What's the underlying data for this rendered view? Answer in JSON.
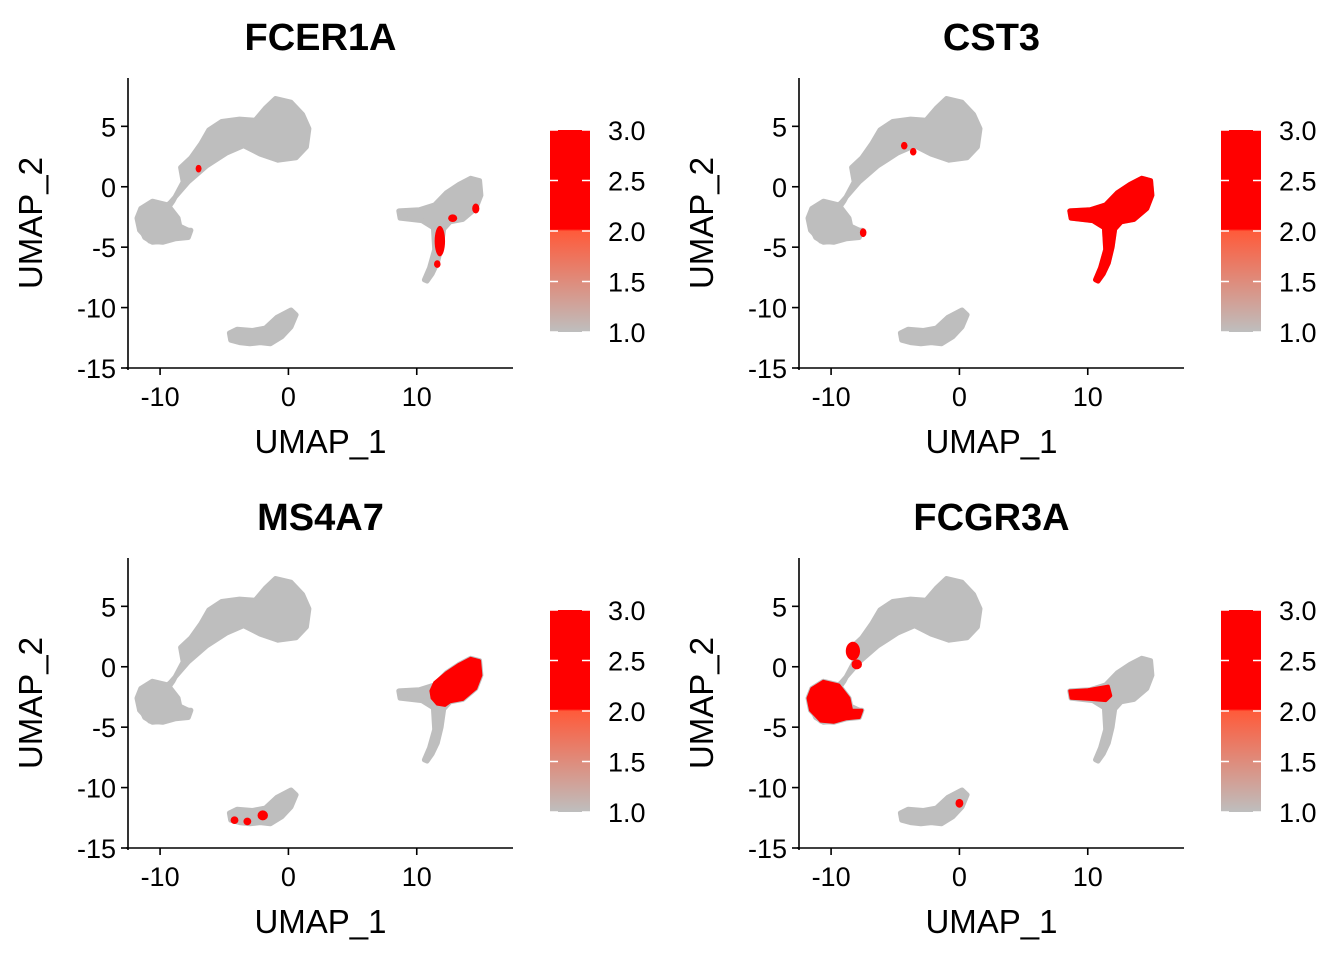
{
  "figure_name": "feature-plot-grid",
  "colors": {
    "low": "#bebebe",
    "high": "#ff0000",
    "axis": "#000000",
    "background": "#ffffff"
  },
  "chart_data": [
    {
      "type": "scatter",
      "title": "FCER1A",
      "xlabel": "UMAP_1",
      "ylabel": "UMAP_2",
      "xlim": [
        -12.5,
        17.5
      ],
      "ylim": [
        -15,
        9
      ],
      "xticks": [
        -10,
        0,
        10
      ],
      "yticks": [
        5,
        0,
        -5,
        -10,
        -15
      ],
      "legend": {
        "position": "right",
        "ticks": [
          3.0,
          2.5,
          2.0,
          1.5,
          1.0
        ],
        "range": [
          1.0,
          3.0
        ]
      },
      "highlight": [
        {
          "cluster": "monocyte",
          "shape": "spot",
          "x": 11.8,
          "y": -4.5,
          "w": 0.5,
          "h": 2.2
        },
        {
          "cluster": "monocyte",
          "shape": "spot",
          "x": 12.8,
          "y": -2.6,
          "w": 0.4,
          "h": 0.3
        },
        {
          "cluster": "monocyte",
          "shape": "spot",
          "x": 14.6,
          "y": -1.8,
          "w": 0.25,
          "h": 0.5
        },
        {
          "cluster": "monocyte",
          "shape": "spot",
          "x": 11.6,
          "y": -6.4,
          "w": 0.2,
          "h": 0.3
        },
        {
          "cluster": "tcell",
          "shape": "spot",
          "x": -7.0,
          "y": 1.5,
          "w": 0.15,
          "h": 0.3
        }
      ]
    },
    {
      "type": "scatter",
      "title": "CST3",
      "xlabel": "UMAP_1",
      "ylabel": "UMAP_2",
      "xlim": [
        -12.5,
        17.5
      ],
      "ylim": [
        -15,
        9
      ],
      "xticks": [
        -10,
        0,
        10
      ],
      "yticks": [
        5,
        0,
        -5,
        -10,
        -15
      ],
      "legend": {
        "position": "right",
        "ticks": [
          3.0,
          2.5,
          2.0,
          1.5,
          1.0
        ],
        "range": [
          1.0,
          3.0
        ]
      },
      "highlight": [
        {
          "cluster": "monocyte",
          "shape": "full"
        },
        {
          "cluster": "tcell",
          "shape": "spot",
          "x": -4.3,
          "y": 3.4,
          "w": 0.2,
          "h": 0.3
        },
        {
          "cluster": "tcell",
          "shape": "spot",
          "x": -3.6,
          "y": 2.9,
          "w": 0.2,
          "h": 0.3
        },
        {
          "cluster": "nk",
          "shape": "spot",
          "x": -7.5,
          "y": -3.8,
          "w": 0.2,
          "h": 0.4
        }
      ]
    },
    {
      "type": "scatter",
      "title": "MS4A7",
      "xlabel": "UMAP_1",
      "ylabel": "UMAP_2",
      "xlim": [
        -12.5,
        17.5
      ],
      "ylim": [
        -15,
        9
      ],
      "xticks": [
        -10,
        0,
        10
      ],
      "yticks": [
        5,
        0,
        -5,
        -10,
        -15
      ],
      "legend": {
        "position": "right",
        "ticks": [
          3.0,
          2.5,
          2.0,
          1.5,
          1.0
        ],
        "range": [
          1.0,
          3.0
        ]
      },
      "highlight": [
        {
          "cluster": "monocyte",
          "shape": "body"
        },
        {
          "cluster": "bcell",
          "shape": "spot",
          "x": -2.0,
          "y": -12.3,
          "w": 0.5,
          "h": 0.5
        },
        {
          "cluster": "bcell",
          "shape": "spot",
          "x": -4.2,
          "y": -12.7,
          "w": 0.3,
          "h": 0.3
        },
        {
          "cluster": "bcell",
          "shape": "spot",
          "x": -3.2,
          "y": -12.8,
          "w": 0.3,
          "h": 0.3
        }
      ]
    },
    {
      "type": "scatter",
      "title": "FCGR3A",
      "xlabel": "UMAP_1",
      "ylabel": "UMAP_2",
      "xlim": [
        -12.5,
        17.5
      ],
      "ylim": [
        -15,
        9
      ],
      "xticks": [
        -10,
        0,
        10
      ],
      "yticks": [
        5,
        0,
        -5,
        -10,
        -15
      ],
      "legend": {
        "position": "right",
        "ticks": [
          3.0,
          2.5,
          2.0,
          1.5,
          1.0
        ],
        "range": [
          1.0,
          3.0
        ]
      },
      "highlight": [
        {
          "cluster": "nk",
          "shape": "body"
        },
        {
          "cluster": "monocyte",
          "shape": "arm"
        },
        {
          "cluster": "tcell",
          "shape": "spot",
          "x": -8.3,
          "y": 1.3,
          "w": 0.8,
          "h": 1.2
        },
        {
          "cluster": "tcell",
          "shape": "spot",
          "x": -8.0,
          "y": 0.2,
          "w": 0.5,
          "h": 0.5
        },
        {
          "cluster": "bcell",
          "shape": "spot",
          "x": 0.0,
          "y": -11.3,
          "w": 0.3,
          "h": 0.4
        }
      ]
    }
  ]
}
